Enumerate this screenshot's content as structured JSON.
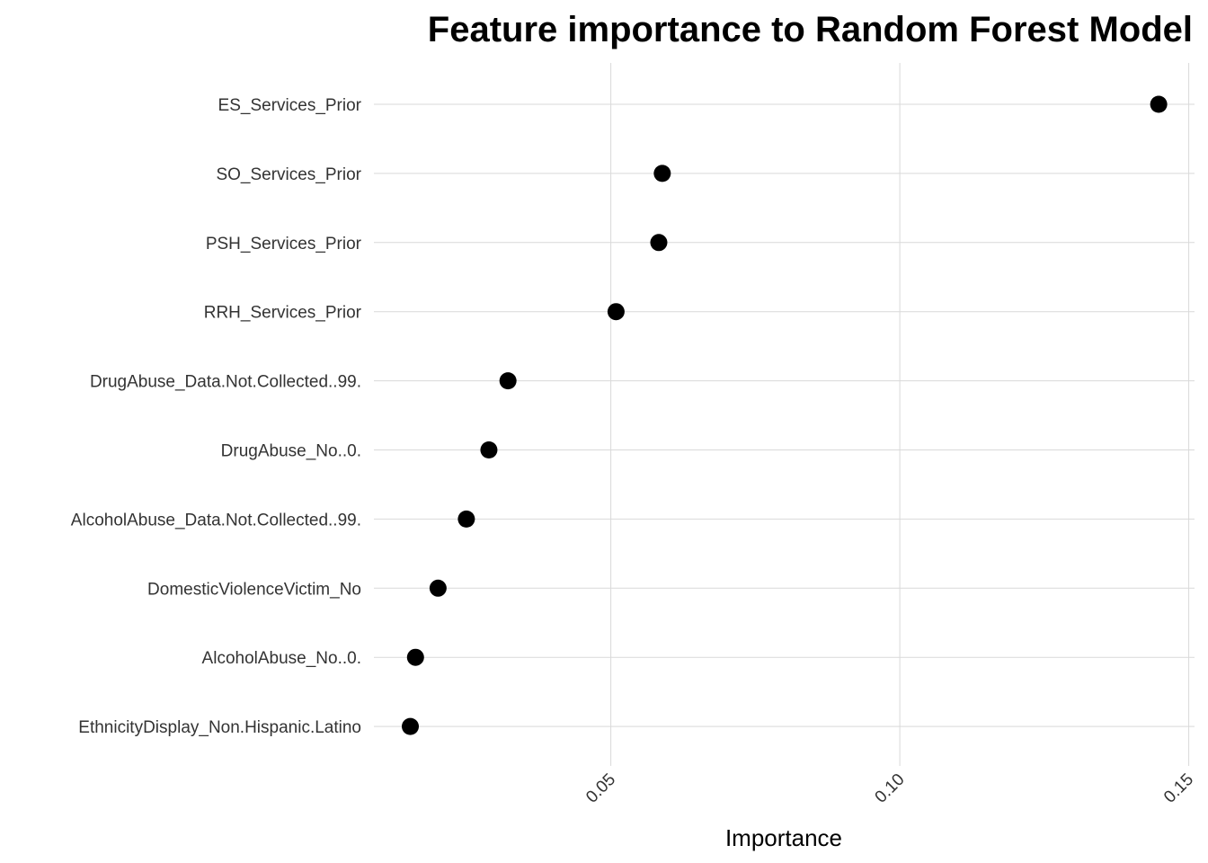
{
  "chart_data": {
    "type": "scatter",
    "title": "Feature importance to Random Forest Model",
    "xlabel": "Importance",
    "ylabel": "",
    "xlim": [
      0.009,
      0.151
    ],
    "x_ticks": [
      "0.05",
      "0.10",
      "0.15"
    ],
    "x_tick_values": [
      0.05,
      0.1,
      0.15
    ],
    "grid": true,
    "point_color": "#000000",
    "categories": [
      "ES_Services_Prior",
      "SO_Services_Prior",
      "PSH_Services_Prior",
      "RRH_Services_Prior",
      "DrugAbuse_Data.Not.Collected..99.",
      "DrugAbuse_No..0.",
      "AlcoholAbuse_Data.Not.Collected..99.",
      "DomesticViolenceVictim_No",
      "AlcoholAbuse_No..0.",
      "EthnicityDisplay_Non.Hispanic.Latino"
    ],
    "values": [
      0.1448,
      0.0589,
      0.0583,
      0.0509,
      0.0322,
      0.0289,
      0.025,
      0.0201,
      0.0162,
      0.0153
    ]
  }
}
